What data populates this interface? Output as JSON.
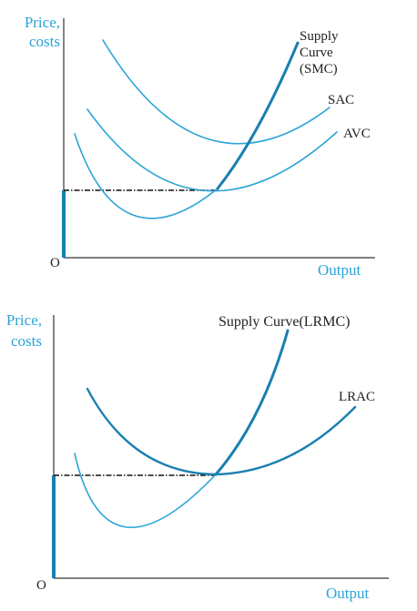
{
  "colors": {
    "light_blue": "#2aa4d8",
    "dark_blue": "#1a7fb0",
    "axis": "#333333",
    "dark_text": "#222222",
    "dashed": "#111111"
  },
  "top_panel": {
    "y_axis_label_line1": "Price,",
    "y_axis_label_line2": "costs",
    "origin_label": "O",
    "x_axis_label": "Output",
    "smc_label_line1": "Supply",
    "smc_label_line2": "Curve",
    "smc_label_line3": "(SMC)",
    "sac_label": "SAC",
    "avc_label": "AVC"
  },
  "bottom_panel": {
    "y_axis_label_line1": "Price,",
    "y_axis_label_line2": "costs",
    "origin_label": "O",
    "x_axis_label": "Output",
    "lrmc_label": "Supply Curve(LRMC)",
    "lrac_label": "LRAC"
  }
}
